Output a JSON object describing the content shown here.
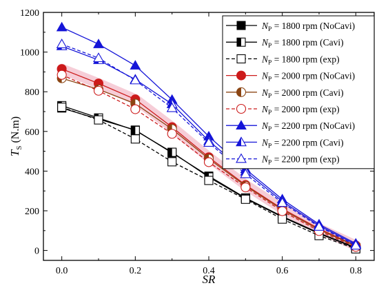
{
  "chart_data": {
    "type": "line",
    "xlabel": {
      "main": "SR"
    },
    "ylabel": {
      "main": "T",
      "sub": "S",
      "unit": " (N.m)"
    },
    "xlim": [
      -0.05,
      0.85
    ],
    "ylim": [
      -50,
      1200
    ],
    "x_ticks": [
      "0.0",
      "0.2",
      "0.4",
      "0.6",
      "0.8"
    ],
    "y_ticks": [
      "0",
      "200",
      "400",
      "600",
      "800",
      "1000",
      "1200"
    ],
    "legend_position": "top-right",
    "series": [
      {
        "name": "N",
        "name_sub": "P",
        "name_rest": " = 1800 rpm (NoCavi)",
        "color": "#000000",
        "marker": "square-filled",
        "dash": false,
        "band": false,
        "x": [
          0,
          0.1,
          0.2,
          0.3,
          0.4,
          0.5,
          0.6,
          0.7,
          0.8
        ],
        "y": [
          718,
          662,
          607,
          492,
          375,
          265,
          172,
          88,
          15
        ]
      },
      {
        "name": "N",
        "name_sub": "P",
        "name_rest": " = 1800 rpm (Cavi)",
        "color": "#000000",
        "marker": "square-half",
        "dash": false,
        "band": false,
        "x": [
          0,
          0.1,
          0.2,
          0.3,
          0.4,
          0.5,
          0.6,
          0.7,
          0.8
        ],
        "y": [
          730,
          668,
          605,
          495,
          370,
          262,
          168,
          85,
          12
        ]
      },
      {
        "name": "N",
        "name_sub": "P",
        "name_rest": " = 1800 rpm (exp)",
        "color": "#000000",
        "marker": "square-open",
        "dash": true,
        "band": false,
        "x": [
          0,
          0.1,
          0.2,
          0.3,
          0.4,
          0.5,
          0.6,
          0.7,
          0.8
        ],
        "y": [
          722,
          658,
          562,
          447,
          353,
          258,
          158,
          75,
          8
        ]
      },
      {
        "name": "N",
        "name_sub": "P",
        "name_rest": " = 2000 rpm (NoCavi)",
        "color": "#cc1a1a",
        "marker": "circle-filled",
        "dash": false,
        "band": true,
        "x": [
          0,
          0.1,
          0.2,
          0.3,
          0.4,
          0.5,
          0.6,
          0.7,
          0.8
        ],
        "y": [
          915,
          842,
          762,
          622,
          470,
          330,
          210,
          110,
          25
        ]
      },
      {
        "name": "N",
        "name_sub": "P",
        "name_rest": " = 2000 rpm (Cavi)",
        "color": "#8b4513",
        "marker": "circle-half",
        "dash": false,
        "band": false,
        "x": [
          0,
          0.1,
          0.2,
          0.3,
          0.4,
          0.5,
          0.6,
          0.7,
          0.8
        ],
        "y": [
          868,
          812,
          740,
          612,
          462,
          325,
          205,
          105,
          22
        ]
      },
      {
        "name": "N",
        "name_sub": "P",
        "name_rest": " = 2000 rpm (exp)",
        "color": "#cc1a1a",
        "marker": "circle-open",
        "dash": true,
        "band": false,
        "x": [
          0,
          0.1,
          0.2,
          0.3,
          0.4,
          0.5,
          0.6,
          0.7,
          0.8
        ],
        "y": [
          885,
          805,
          712,
          588,
          445,
          318,
          198,
          98,
          18
        ]
      },
      {
        "name": "N",
        "name_sub": "P",
        "name_rest": " = 2200 rpm (NoCavi)",
        "color": "#1515d8",
        "marker": "triangle-filled",
        "dash": false,
        "band": false,
        "x": [
          0,
          0.1,
          0.2,
          0.3,
          0.4,
          0.5,
          0.6,
          0.7,
          0.8
        ],
        "y": [
          1125,
          1040,
          932,
          760,
          575,
          410,
          258,
          132,
          35
        ]
      },
      {
        "name": "N",
        "name_sub": "P",
        "name_rest": " = 2200 rpm (Cavi)",
        "color": "#1515d8",
        "marker": "triangle-half",
        "dash": false,
        "band": false,
        "x": [
          0,
          0.1,
          0.2,
          0.3,
          0.4,
          0.5,
          0.6,
          0.7,
          0.8
        ],
        "y": [
          1030,
          960,
          862,
          738,
          552,
          398,
          248,
          125,
          30
        ]
      },
      {
        "name": "N",
        "name_sub": "P",
        "name_rest": " = 2200 rpm (exp)",
        "color": "#1515d8",
        "marker": "triangle-open",
        "dash": true,
        "band": false,
        "x": [
          0,
          0.1,
          0.2,
          0.3,
          0.4,
          0.5,
          0.6,
          0.7,
          0.8
        ],
        "y": [
          1040,
          970,
          858,
          718,
          543,
          385,
          240,
          120,
          25
        ]
      }
    ]
  }
}
